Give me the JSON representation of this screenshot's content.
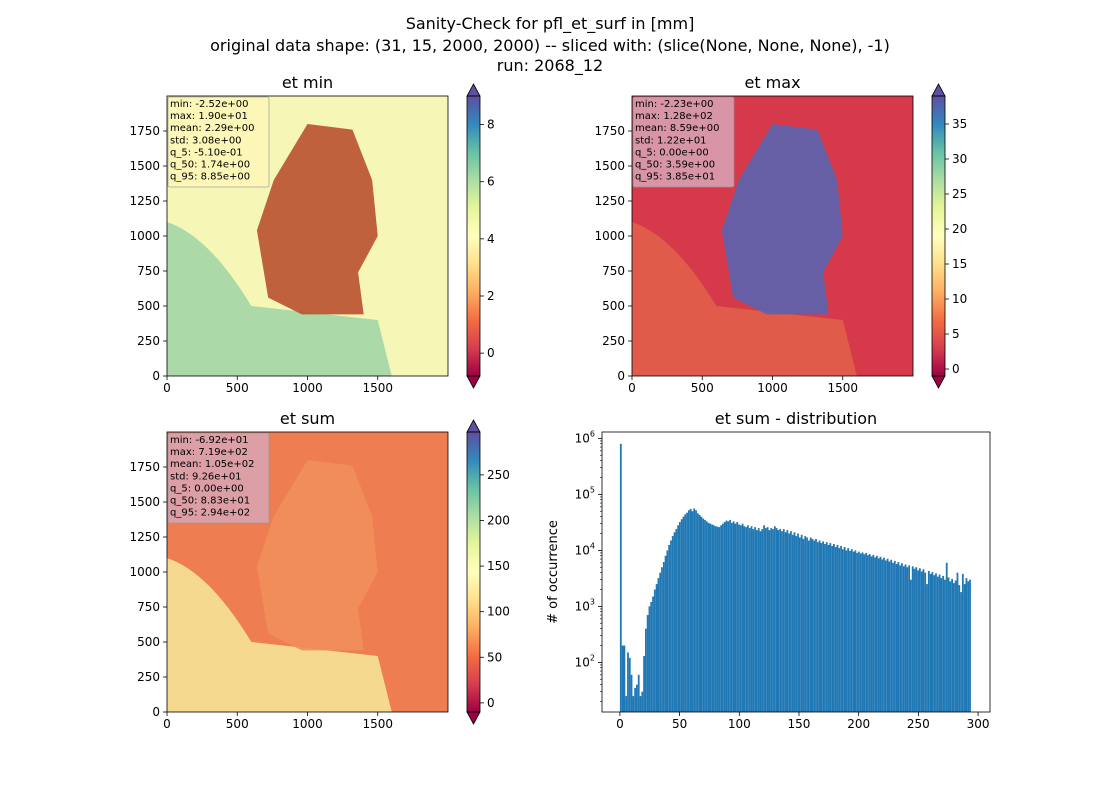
{
  "figure": {
    "suptitle_lines": [
      "Sanity-Check for pfl_et_surf in [mm]",
      "original data shape: (31, 15, 2000, 2000) -- sliced with: (slice(None, None, None), -1)",
      "run: 2068_12"
    ]
  },
  "panels": [
    {
      "title": "et min",
      "x_ticks": [
        "0",
        "500",
        "1000",
        "1500"
      ],
      "y_ticks": [
        "0",
        "250",
        "500",
        "750",
        "1000",
        "1250",
        "1500",
        "1750"
      ],
      "stats": [
        "min: -2.52e+00",
        "max: 1.90e+01",
        "mean: 2.29e+00",
        "std: 3.08e+00",
        "q_5: -5.10e-01",
        "q_50: 1.74e+00",
        "q_95: 8.85e+00"
      ],
      "stats_color": "#fff7b8",
      "colorbar": {
        "cmap": "Spectral",
        "range": [
          -0.8,
          9.0
        ],
        "ticks": [
          "0",
          "2",
          "4",
          "6",
          "8"
        ],
        "tick_values": [
          0,
          2,
          4,
          6,
          8
        ],
        "extend": "both"
      },
      "land_color": "#b8502f",
      "sea_color": "#9fd4a6",
      "bg_color": "#f6f7b6"
    },
    {
      "title": "et max",
      "x_ticks": [
        "0",
        "500",
        "1000",
        "1500"
      ],
      "y_ticks": [
        "0",
        "250",
        "500",
        "750",
        "1000",
        "1250",
        "1500",
        "1750"
      ],
      "stats": [
        "min: -2.23e+00",
        "max: 1.28e+02",
        "mean: 8.59e+00",
        "std: 1.22e+01",
        "q_5: 0.00e+00",
        "q_50: 3.59e+00",
        "q_95: 3.85e+01"
      ],
      "stats_color": "#d9a6b5",
      "colorbar": {
        "cmap": "Spectral",
        "range": [
          -1.0,
          39.0
        ],
        "ticks": [
          "0",
          "5",
          "10",
          "15",
          "20",
          "25",
          "30",
          "35"
        ],
        "tick_values": [
          0,
          5,
          10,
          15,
          20,
          25,
          30,
          35
        ],
        "extend": "both"
      },
      "land_color": "#5a64b0",
      "sea_color": "#e2614a",
      "bg_color": "#d63a4a"
    },
    {
      "title": "et sum",
      "x_ticks": [
        "0",
        "500",
        "1000",
        "1500"
      ],
      "y_ticks": [
        "0",
        "250",
        "500",
        "750",
        "1000",
        "1250",
        "1500",
        "1750"
      ],
      "stats": [
        "min: -6.92e+01",
        "max: 7.19e+02",
        "mean: 1.05e+02",
        "std: 9.26e+01",
        "q_5: 0.00e+00",
        "q_50: 8.83e+01",
        "q_95: 2.94e+02"
      ],
      "stats_color": "#d9a6b5",
      "colorbar": {
        "cmap": "Spectral",
        "range": [
          -10,
          297
        ],
        "ticks": [
          "0",
          "50",
          "100",
          "150",
          "200",
          "250"
        ],
        "tick_values": [
          0,
          50,
          100,
          150,
          200,
          250
        ],
        "extend": "both"
      },
      "land_color": "#f08f5a",
      "sea_color": "#f6e99a",
      "bg_color": "#ee7d52"
    }
  ],
  "chart_data": {
    "type": "bar",
    "title": "et sum - distribution",
    "xlabel": "",
    "ylabel": "# of occurrence",
    "x_range": [
      -15,
      310
    ],
    "y_log": true,
    "y_range": [
      13,
      1300000
    ],
    "x_ticks": [
      0,
      50,
      100,
      150,
      200,
      250,
      300
    ],
    "y_ticks": [
      {
        "value": 100,
        "label_base": "10",
        "label_exp": "2"
      },
      {
        "value": 1000,
        "label_base": "10",
        "label_exp": "3"
      },
      {
        "value": 10000,
        "label_base": "10",
        "label_exp": "4"
      },
      {
        "value": 100000,
        "label_base": "10",
        "label_exp": "5"
      },
      {
        "value": 1000000,
        "label_base": "10",
        "label_exp": "6"
      }
    ],
    "bar_color": "#1f77b4",
    "bin_width": 1.5,
    "bins": [
      [
        0,
        800000
      ],
      [
        1.5,
        200
      ],
      [
        3,
        200
      ],
      [
        4.5,
        25
      ],
      [
        6,
        150
      ],
      [
        7.5,
        120
      ],
      [
        9,
        60
      ],
      [
        10.5,
        25
      ],
      [
        12,
        35
      ],
      [
        13.5,
        40
      ],
      [
        15,
        60
      ],
      [
        16.5,
        25
      ],
      [
        18,
        30
      ],
      [
        19.5,
        130
      ],
      [
        21,
        400
      ],
      [
        22.5,
        700
      ],
      [
        24,
        1000
      ],
      [
        25.5,
        1200
      ],
      [
        27,
        1500
      ],
      [
        28.5,
        2000
      ],
      [
        30,
        2500
      ],
      [
        31.5,
        3200
      ],
      [
        33,
        4000
      ],
      [
        34.5,
        5000
      ],
      [
        36,
        6200
      ],
      [
        37.5,
        8000
      ],
      [
        39,
        10000
      ],
      [
        40.5,
        12500
      ],
      [
        42,
        15000
      ],
      [
        43.5,
        18000
      ],
      [
        45,
        21000
      ],
      [
        46.5,
        24000
      ],
      [
        48,
        28000
      ],
      [
        49.5,
        32000
      ],
      [
        51,
        36000
      ],
      [
        52.5,
        40000
      ],
      [
        54,
        44000
      ],
      [
        55.5,
        47000
      ],
      [
        57,
        52000
      ],
      [
        58.5,
        55000
      ],
      [
        60,
        50000
      ],
      [
        61.5,
        56000
      ],
      [
        63,
        52000
      ],
      [
        64.5,
        46000
      ],
      [
        66,
        43000
      ],
      [
        67.5,
        40000
      ],
      [
        69,
        37000
      ],
      [
        70.5,
        35000
      ],
      [
        72,
        33000
      ],
      [
        73.5,
        31000
      ],
      [
        75,
        30000
      ],
      [
        76.5,
        29000
      ],
      [
        78,
        28000
      ],
      [
        79.5,
        27000
      ],
      [
        81,
        26500
      ],
      [
        82.5,
        26000
      ],
      [
        84,
        28000
      ],
      [
        85.5,
        30000
      ],
      [
        87,
        32000
      ],
      [
        88.5,
        34000
      ],
      [
        90,
        33000
      ],
      [
        91.5,
        35000
      ],
      [
        93,
        31000
      ],
      [
        94.5,
        33000
      ],
      [
        96,
        30000
      ],
      [
        97.5,
        32000
      ],
      [
        99,
        29000
      ],
      [
        100.5,
        28000
      ],
      [
        102,
        30000
      ],
      [
        103.5,
        27000
      ],
      [
        105,
        26000
      ],
      [
        106.5,
        28000
      ],
      [
        108,
        25000
      ],
      [
        109.5,
        27000
      ],
      [
        111,
        24000
      ],
      [
        112.5,
        26000
      ],
      [
        114,
        23000
      ],
      [
        115.5,
        25000
      ],
      [
        117,
        22000
      ],
      [
        118.5,
        24000
      ],
      [
        120,
        28000
      ],
      [
        121.5,
        25000
      ],
      [
        123,
        26000
      ],
      [
        124.5,
        23000
      ],
      [
        126,
        25000
      ],
      [
        127.5,
        24000
      ],
      [
        129,
        27000
      ],
      [
        130.5,
        25000
      ],
      [
        132,
        23000
      ],
      [
        133.5,
        24000
      ],
      [
        135,
        22000
      ],
      [
        136.5,
        24000
      ],
      [
        138,
        21000
      ],
      [
        139.5,
        23000
      ],
      [
        141,
        20000
      ],
      [
        142.5,
        22000
      ],
      [
        144,
        19000
      ],
      [
        145.5,
        21000
      ],
      [
        147,
        18000
      ],
      [
        148.5,
        20000
      ],
      [
        150,
        17000
      ],
      [
        151.5,
        19000
      ],
      [
        153,
        16000
      ],
      [
        154.5,
        18000
      ],
      [
        156,
        17000
      ],
      [
        157.5,
        15000
      ],
      [
        159,
        17000
      ],
      [
        160.5,
        16000
      ],
      [
        162,
        15000
      ],
      [
        163.5,
        16000
      ],
      [
        165,
        14000
      ],
      [
        166.5,
        15000
      ],
      [
        168,
        13500
      ],
      [
        169.5,
        14500
      ],
      [
        171,
        13000
      ],
      [
        172.5,
        14000
      ],
      [
        174,
        12500
      ],
      [
        175.5,
        13500
      ],
      [
        177,
        12000
      ],
      [
        178.5,
        13000
      ],
      [
        180,
        11500
      ],
      [
        181.5,
        12500
      ],
      [
        183,
        11000
      ],
      [
        184.5,
        12000
      ],
      [
        186,
        10500
      ],
      [
        187.5,
        11500
      ],
      [
        189,
        10000
      ],
      [
        190.5,
        11000
      ],
      [
        192,
        9800
      ],
      [
        193.5,
        10500
      ],
      [
        195,
        9500
      ],
      [
        196.5,
        10000
      ],
      [
        198,
        9000
      ],
      [
        199.5,
        9500
      ],
      [
        201,
        8800
      ],
      [
        202.5,
        9200
      ],
      [
        204,
        8500
      ],
      [
        205.5,
        9000
      ],
      [
        207,
        8200
      ],
      [
        208.5,
        8600
      ],
      [
        210,
        7800
      ],
      [
        211.5,
        8300
      ],
      [
        213,
        7500
      ],
      [
        214.5,
        8000
      ],
      [
        216,
        7200
      ],
      [
        217.5,
        7700
      ],
      [
        219,
        6900
      ],
      [
        220.5,
        7400
      ],
      [
        222,
        6600
      ],
      [
        223.5,
        7100
      ],
      [
        225,
        6300
      ],
      [
        226.5,
        6800
      ],
      [
        228,
        6000
      ],
      [
        229.5,
        6500
      ],
      [
        231,
        5700
      ],
      [
        232.5,
        6200
      ],
      [
        234,
        5400
      ],
      [
        235.5,
        5900
      ],
      [
        237,
        5200
      ],
      [
        238.5,
        5600
      ],
      [
        240,
        5000
      ],
      [
        241.5,
        5400
      ],
      [
        243,
        3000
      ],
      [
        244.5,
        5200
      ],
      [
        246,
        4700
      ],
      [
        247.5,
        5000
      ],
      [
        249,
        4400
      ],
      [
        250.5,
        4800
      ],
      [
        252,
        4200
      ],
      [
        253.5,
        4600
      ],
      [
        255,
        4000
      ],
      [
        256.5,
        2500
      ],
      [
        258,
        4300
      ],
      [
        259.5,
        3800
      ],
      [
        261,
        4100
      ],
      [
        262.5,
        3600
      ],
      [
        264,
        3900
      ],
      [
        265.5,
        3400
      ],
      [
        267,
        3700
      ],
      [
        268.5,
        3200
      ],
      [
        270,
        3500
      ],
      [
        271.5,
        3000
      ],
      [
        273,
        6000
      ],
      [
        274.5,
        3300
      ],
      [
        276,
        2800
      ],
      [
        277.5,
        3100
      ],
      [
        279,
        2600
      ],
      [
        280.5,
        2900
      ],
      [
        282,
        4000
      ],
      [
        283.5,
        2400
      ],
      [
        285,
        1800
      ],
      [
        286.5,
        3800
      ],
      [
        288,
        2500
      ],
      [
        289.5,
        3200
      ],
      [
        291,
        2800
      ],
      [
        292.5,
        3000
      ]
    ]
  }
}
